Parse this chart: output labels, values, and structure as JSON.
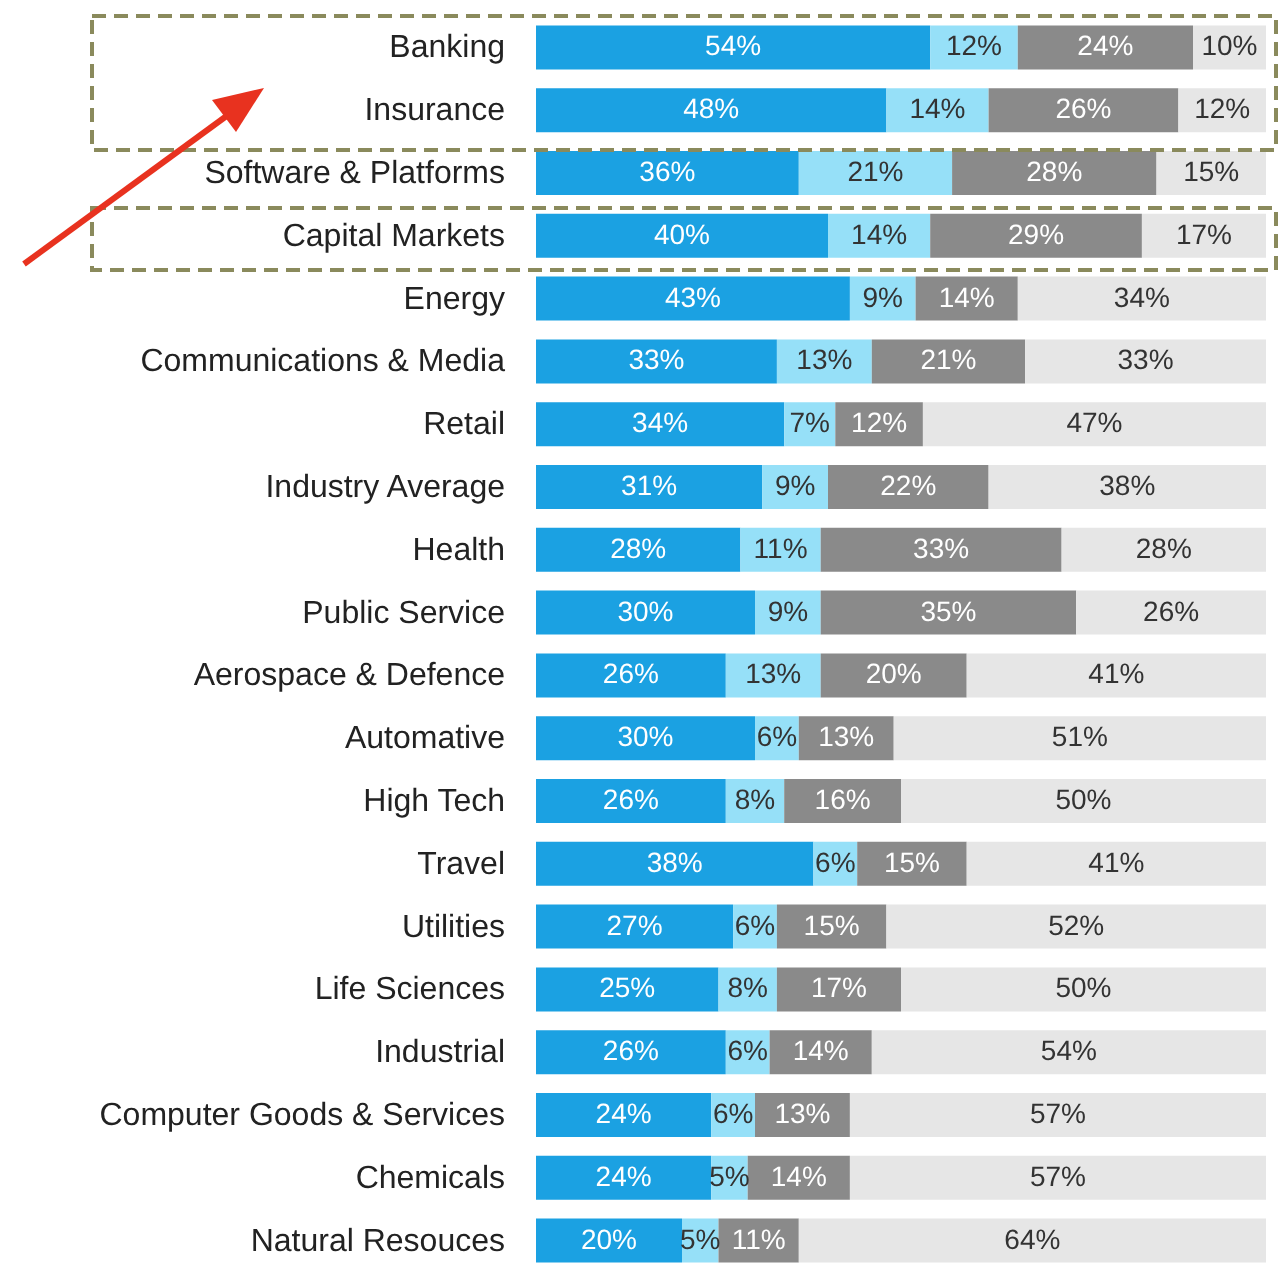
{
  "chart_data": {
    "type": "bar",
    "orientation": "horizontal",
    "stacked": true,
    "categories": [
      "Banking",
      "Insurance",
      "Software & Platforms",
      "Capital Markets",
      "Energy",
      "Communications & Media",
      "Retail",
      "Industry Average",
      "Health",
      "Public Service",
      "Aerospace & Defence",
      "Automative",
      "High Tech",
      "Travel",
      "Utilities",
      "Life Sciences",
      "Industrial",
      "Computer Goods & Services",
      "Chemicals",
      "Natural Resouces"
    ],
    "series": [
      {
        "color": "#1ba1e2",
        "values": [
          54,
          48,
          36,
          40,
          43,
          33,
          34,
          31,
          28,
          30,
          26,
          30,
          26,
          38,
          27,
          25,
          26,
          24,
          24,
          20
        ],
        "value_labels": [
          "54%",
          "48%",
          "36%",
          "40%",
          "43%",
          "33%",
          "34%",
          "31%",
          "28%",
          "30%",
          "26%",
          "30%",
          "26%",
          "38%",
          "27%",
          "25%",
          "26%",
          "24%",
          "24%",
          "20%"
        ]
      },
      {
        "color": "#96e0f8",
        "values": [
          12,
          14,
          21,
          14,
          9,
          13,
          7,
          9,
          11,
          9,
          13,
          6,
          8,
          6,
          6,
          8,
          6,
          6,
          5,
          5
        ],
        "value_labels": [
          "12%",
          "14%",
          "21%",
          "14%",
          "9%",
          "13%",
          "7%",
          "9%",
          "11%",
          "9%",
          "13%",
          "6%",
          "8%",
          "6%",
          "6%",
          "8%",
          "6%",
          "6%",
          "5%",
          "5%"
        ]
      },
      {
        "color": "#8a8a8a",
        "values": [
          24,
          26,
          28,
          29,
          14,
          21,
          12,
          22,
          33,
          35,
          20,
          13,
          16,
          15,
          15,
          17,
          14,
          13,
          14,
          11
        ],
        "value_labels": [
          "24%",
          "26%",
          "28%",
          "29%",
          "14%",
          "21%",
          "12%",
          "22%",
          "33%",
          "35%",
          "20%",
          "13%",
          "16%",
          "15%",
          "15%",
          "17%",
          "14%",
          "13%",
          "14%",
          "11%"
        ]
      },
      {
        "color": "#e6e6e6",
        "values": [
          10,
          12,
          15,
          17,
          34,
          33,
          47,
          38,
          28,
          26,
          41,
          51,
          50,
          41,
          52,
          50,
          54,
          57,
          57,
          64
        ],
        "value_labels": [
          "10%",
          "12%",
          "15%",
          "17%",
          "34%",
          "33%",
          "47%",
          "38%",
          "28%",
          "26%",
          "41%",
          "51%",
          "50%",
          "41%",
          "52%",
          "50%",
          "54%",
          "57%",
          "57%",
          "64%"
        ]
      }
    ],
    "grid": false
  }
}
